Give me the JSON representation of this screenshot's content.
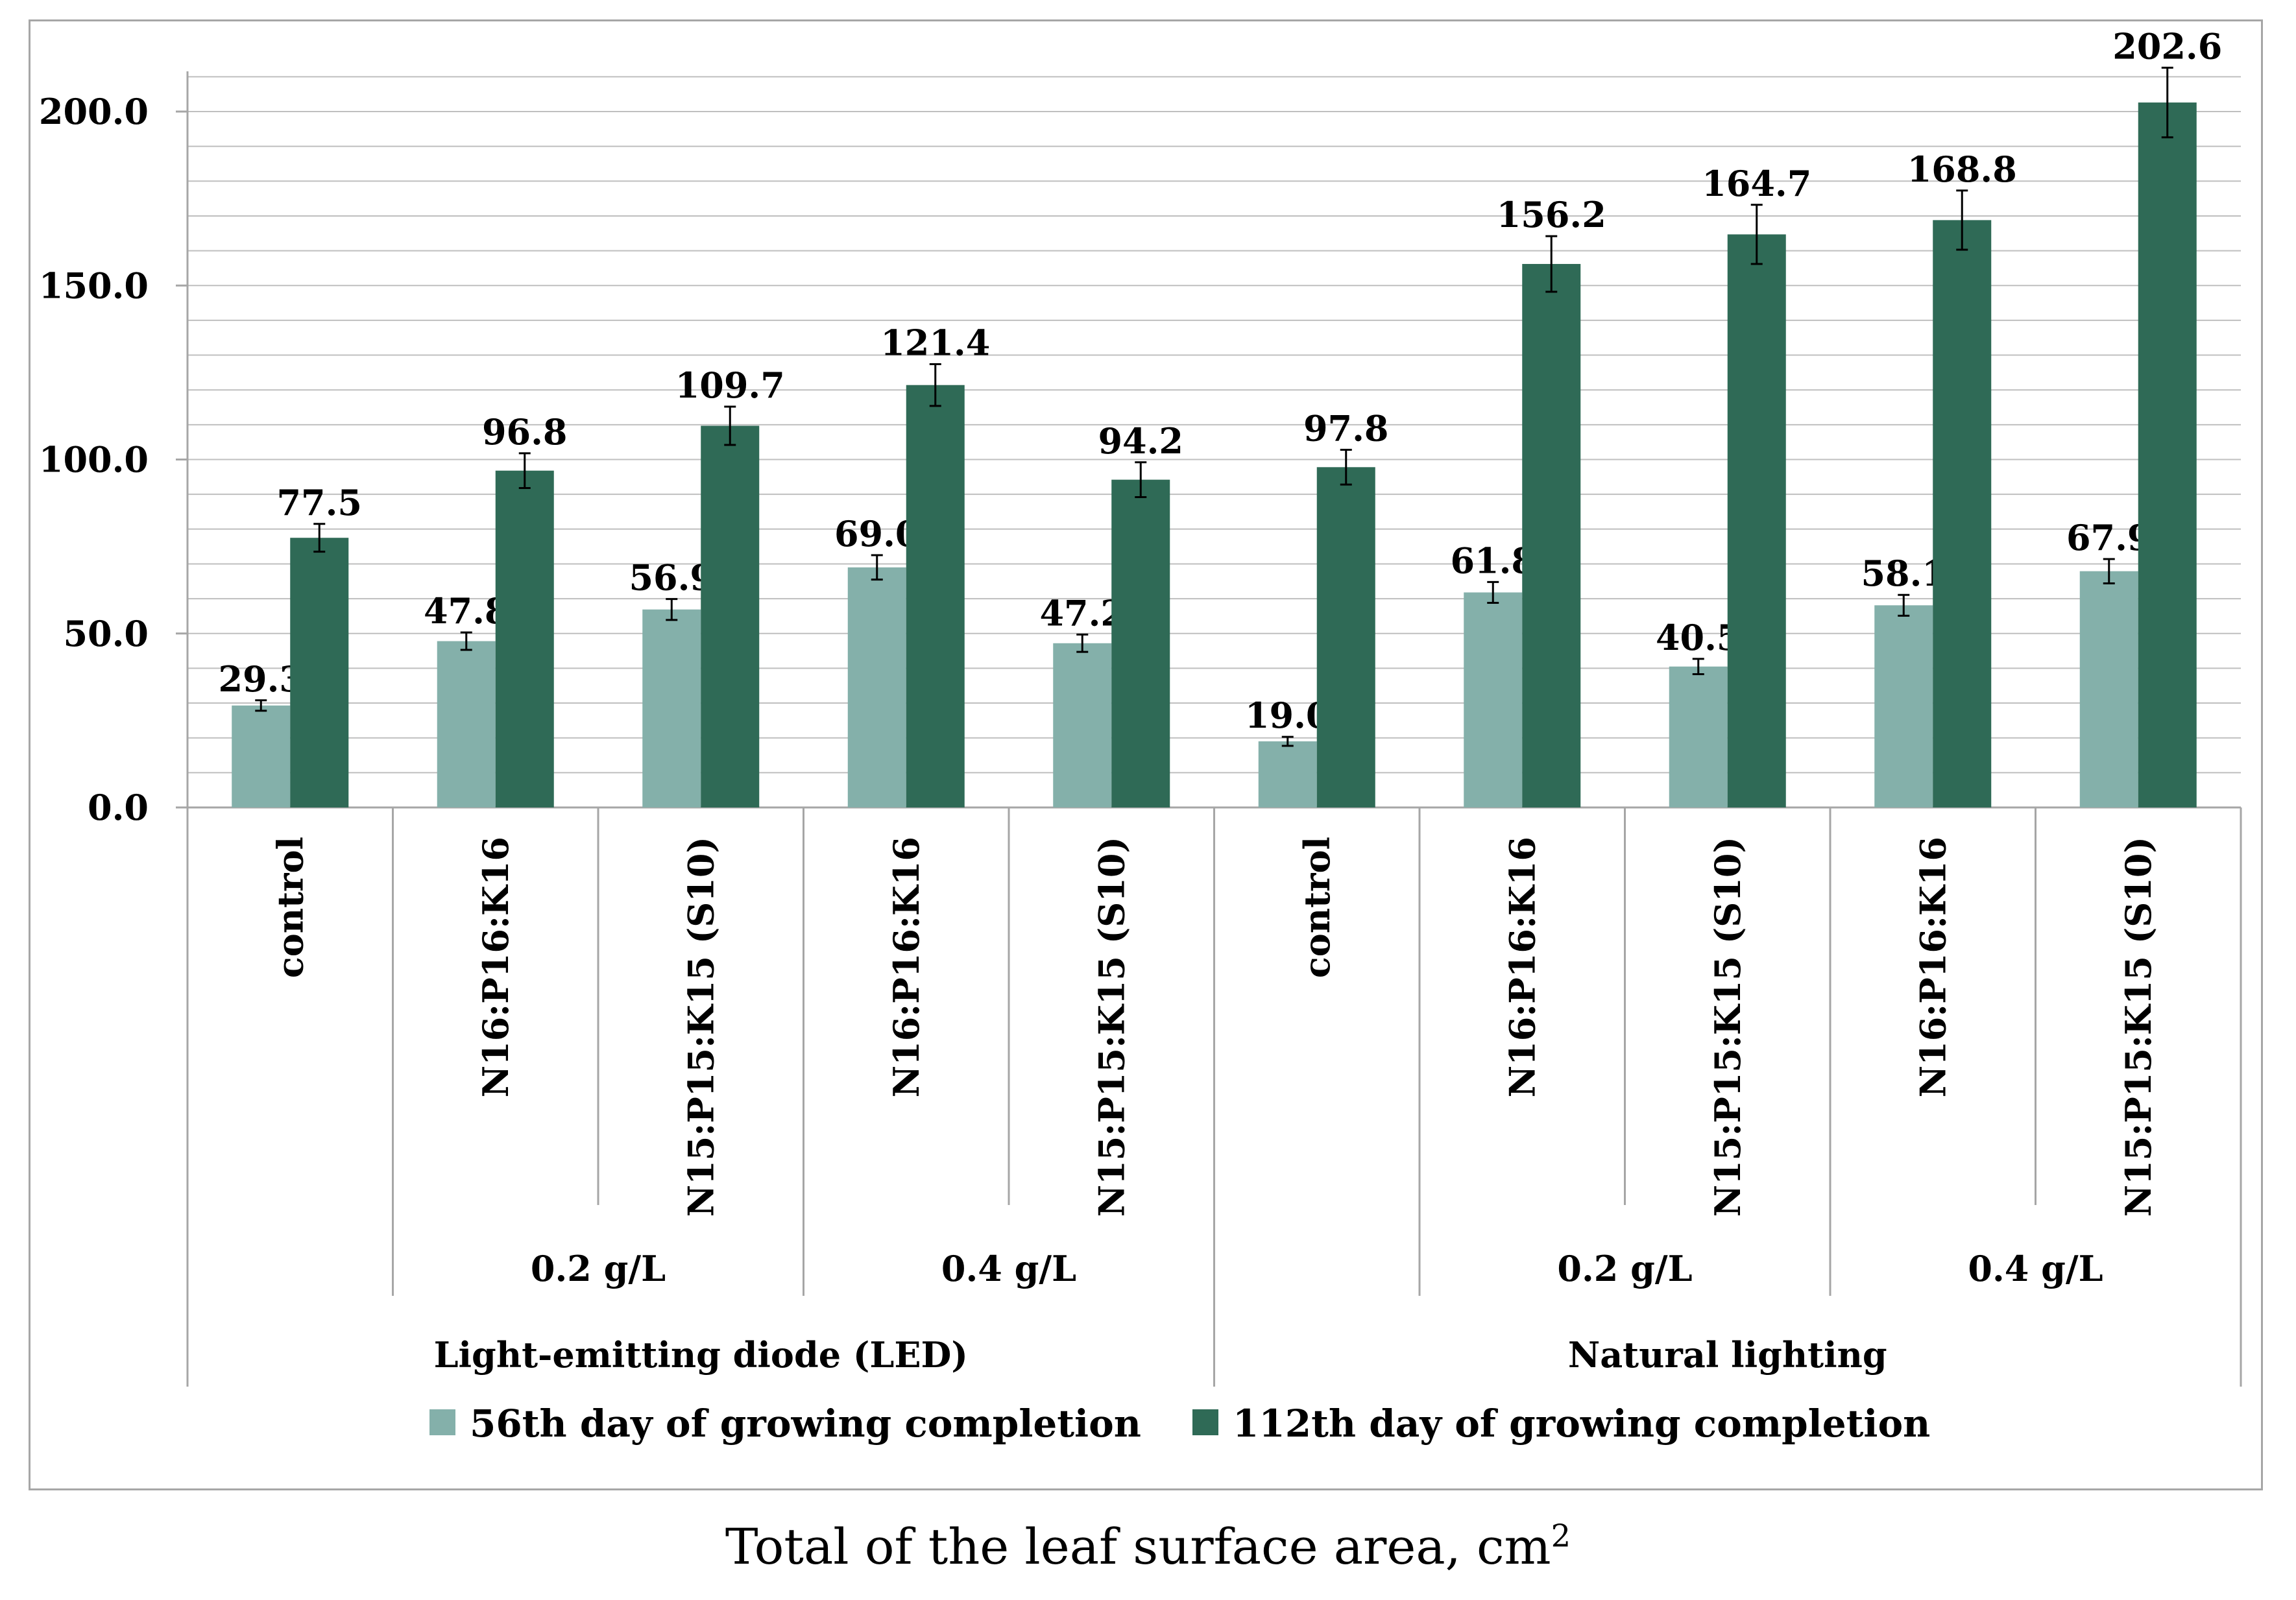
{
  "chart_data": {
    "type": "bar",
    "title": "",
    "xlabel": "Total of the leaf surface area, cm",
    "xlabel_superscript": "2",
    "ylabel": "",
    "ylim": [
      0,
      210
    ],
    "yticks": [
      0,
      50,
      100,
      150,
      200
    ],
    "ytick_labels": [
      "0.0",
      "50.0",
      "100.0",
      "150.0",
      "200.0"
    ],
    "grid": true,
    "legend_position": "bottom",
    "colors": {
      "day56": "#84b0aa",
      "day112": "#2f6a56"
    },
    "categories": [
      "control",
      "N16:P16:K16",
      "N15:P15:K15 (S10)",
      "N16:P16:K16",
      "N15:P15:K15 (S10)",
      "control",
      "N16:P16:K16",
      "N15:P15:K15 (S10)",
      "N16:P16:K16",
      "N15:P15:K15 (S10)"
    ],
    "concentration_groups": [
      {
        "label": "",
        "span": [
          0,
          0
        ]
      },
      {
        "label": "0.2 g/L",
        "span": [
          1,
          2
        ]
      },
      {
        "label": "0.4 g/L",
        "span": [
          3,
          4
        ]
      },
      {
        "label": "",
        "span": [
          5,
          5
        ]
      },
      {
        "label": "0.2 g/L",
        "span": [
          6,
          7
        ]
      },
      {
        "label": "0.4 g/L",
        "span": [
          8,
          9
        ]
      }
    ],
    "lighting_groups": [
      {
        "label": "Light-emitting diode (LED)",
        "span": [
          0,
          4
        ]
      },
      {
        "label": "Natural lighting",
        "span": [
          5,
          9
        ]
      }
    ],
    "series": [
      {
        "name": "56th day of growing completion",
        "values": [
          29.3,
          47.8,
          56.9,
          69.0,
          47.2,
          19.0,
          61.8,
          40.5,
          58.1,
          67.9
        ],
        "value_labels": [
          "29.3",
          "47.8",
          "56.9",
          "69.0",
          "47.2",
          "19.0",
          "61.8",
          "40.5",
          "58.1",
          "67.9"
        ],
        "errors": [
          1.5,
          2.5,
          3.0,
          3.5,
          2.5,
          1.3,
          3.0,
          2.2,
          3.0,
          3.5
        ]
      },
      {
        "name": "112th day of growing completion",
        "values": [
          77.5,
          96.8,
          109.7,
          121.4,
          94.2,
          97.8,
          156.2,
          164.7,
          168.8,
          202.6
        ],
        "value_labels": [
          "77.5",
          "96.8",
          "109.7",
          "121.4",
          "94.2",
          "97.8",
          "156.2",
          "164.7",
          "168.8",
          "202.6"
        ],
        "errors": [
          4.0,
          5.0,
          5.5,
          6.0,
          5.0,
          5.0,
          8.0,
          8.5,
          8.5,
          10.0
        ]
      }
    ]
  }
}
